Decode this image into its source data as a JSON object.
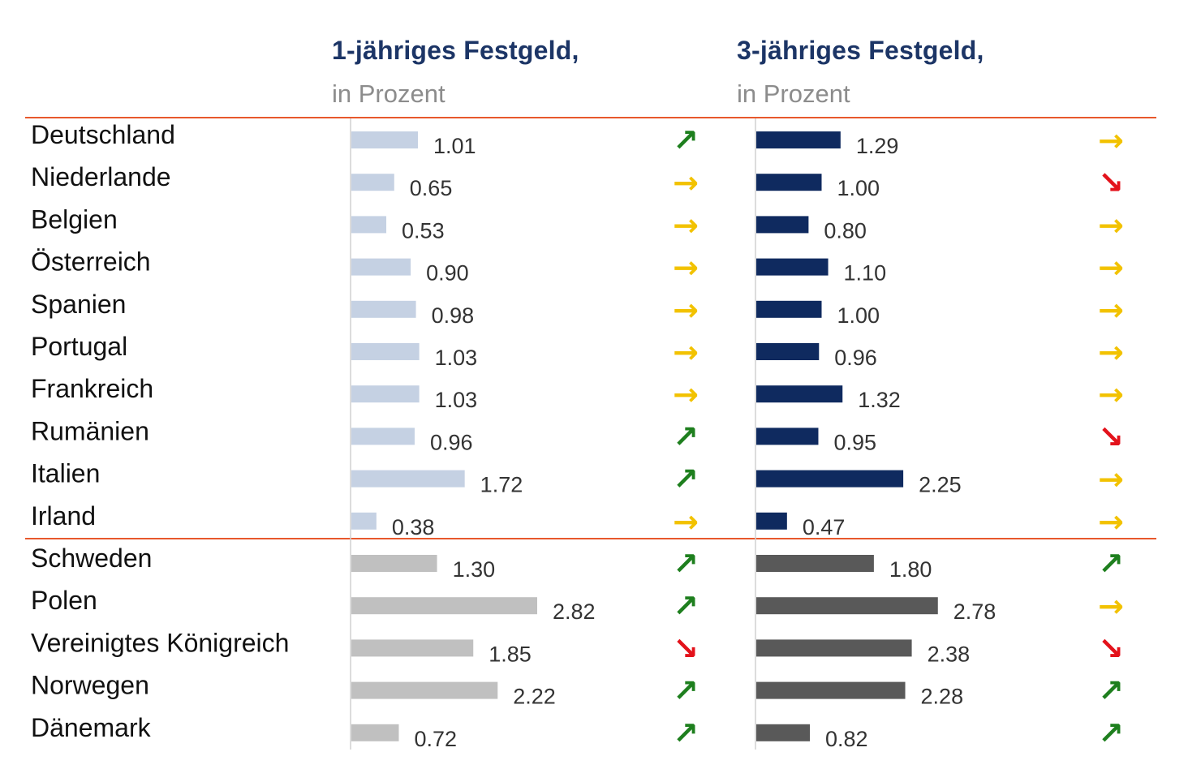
{
  "colors": {
    "separator": "#e8582c",
    "axis": "#d0d0d0",
    "eurozone_1y": "#c5d1e3",
    "eurozone_3y": "#0f2a5f",
    "other_1y": "#c0c0c0",
    "other_3y": "#595959",
    "trend_up": "#1e7f1e",
    "trend_flat": "#f2c200",
    "trend_down": "#e3121b"
  },
  "icons": {
    "up": "arrow-up-right-icon",
    "flat": "arrow-right-icon",
    "down": "arrow-down-right-icon"
  },
  "chart_data": {
    "type": "bar",
    "orientation": "horizontal",
    "categories": [
      "Deutschland",
      "Niederlande",
      "Belgien",
      "Österreich",
      "Spanien",
      "Portugal",
      "Frankreich",
      "Rumänien",
      "Italien",
      "Irland",
      "Schweden",
      "Polen",
      "Vereinigtes Königreich",
      "Norwegen",
      "Dänemark"
    ],
    "groups": [
      {
        "count": 10,
        "style": "eurozone"
      },
      {
        "count": 5,
        "style": "other"
      }
    ],
    "series": [
      {
        "title": "1-jähriges Festgeld,",
        "subtitle": "in Prozent",
        "values": [
          1.01,
          0.65,
          0.53,
          0.9,
          0.98,
          1.03,
          1.03,
          0.96,
          1.72,
          0.38,
          1.3,
          2.82,
          1.85,
          2.22,
          0.72
        ],
        "labels": [
          "1.01",
          "0.65",
          "0.53",
          "0.90",
          "0.98",
          "1.03",
          "1.03",
          "0.96",
          "1.72",
          "0.38",
          "1.30",
          "2.82",
          "1.85",
          "2.22",
          "0.72"
        ],
        "trend": [
          "up",
          "flat",
          "flat",
          "flat",
          "flat",
          "flat",
          "flat",
          "up",
          "up",
          "flat",
          "up",
          "up",
          "down",
          "up",
          "up"
        ]
      },
      {
        "title": "3-jähriges Festgeld,",
        "subtitle": "in Prozent",
        "values": [
          1.29,
          1.0,
          0.8,
          1.1,
          1.0,
          0.96,
          1.32,
          0.95,
          2.25,
          0.47,
          1.8,
          2.78,
          2.38,
          2.28,
          0.82
        ],
        "labels": [
          "1.29",
          "1.00",
          "0.80",
          "1.10",
          "1.00",
          "0.96",
          "1.32",
          "0.95",
          "2.25",
          "0.47",
          "1.80",
          "2.78",
          "2.38",
          "2.28",
          "0.82"
        ],
        "trend": [
          "flat",
          "down",
          "flat",
          "flat",
          "flat",
          "flat",
          "flat",
          "down",
          "flat",
          "flat",
          "up",
          "flat",
          "down",
          "up",
          "up"
        ]
      }
    ],
    "xlim": [
      0,
      2.82
    ],
    "grid": false,
    "legend": "none"
  }
}
